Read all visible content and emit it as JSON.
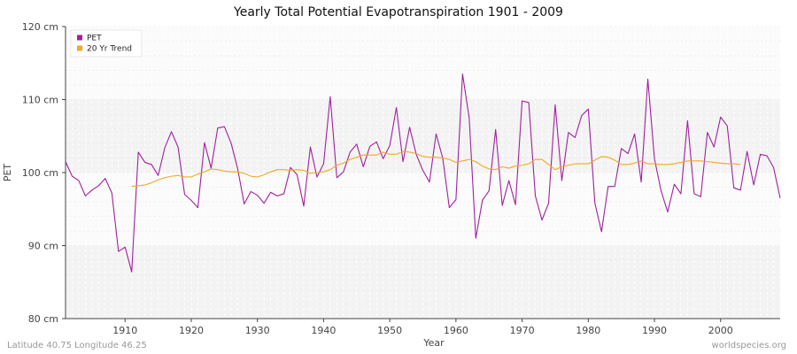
{
  "chart_data": {
    "type": "line",
    "title": "Yearly Total Potential Evapotranspiration 1901 - 2009",
    "xlabel": "Year",
    "ylabel": "PET",
    "xlim": [
      1901,
      2009
    ],
    "ylim": [
      80,
      120
    ],
    "x_ticks": [
      1910,
      1920,
      1930,
      1940,
      1950,
      1960,
      1970,
      1980,
      1990,
      2000
    ],
    "y_ticks": [
      {
        "value": 80,
        "label": "80 cm"
      },
      {
        "value": 90,
        "label": "90 cm"
      },
      {
        "value": 100,
        "label": "100 cm"
      },
      {
        "value": 110,
        "label": "110 cm"
      },
      {
        "value": 120,
        "label": "120 cm"
      }
    ],
    "grid": true,
    "legend_position": "top-left",
    "series": [
      {
        "name": "PET",
        "color": "#a020a0",
        "x_start": 1901,
        "values": [
          101.5,
          99.5,
          98.9,
          96.8,
          97.6,
          98.2,
          99.2,
          97.2,
          89.2,
          89.8,
          86.4,
          102.8,
          101.4,
          101.1,
          99.6,
          103.4,
          105.6,
          103.5,
          97.0,
          96.2,
          95.2,
          104.1,
          100.6,
          106.1,
          106.3,
          104.1,
          100.6,
          95.7,
          97.4,
          96.9,
          95.8,
          97.3,
          96.8,
          97.1,
          100.7,
          99.7,
          95.4,
          103.5,
          99.4,
          101.2,
          110.4,
          99.3,
          100.1,
          102.8,
          103.9,
          100.8,
          103.6,
          104.2,
          101.9,
          103.7,
          108.9,
          101.5,
          106.2,
          102.5,
          100.3,
          98.7,
          105.3,
          102.0,
          95.2,
          96.3,
          113.5,
          107.5,
          91.0,
          96.2,
          97.5,
          105.9,
          95.5,
          98.9,
          95.6,
          109.8,
          109.6,
          96.8,
          93.5,
          95.8,
          109.3,
          98.9,
          105.5,
          104.8,
          107.8,
          108.7,
          95.8,
          91.9,
          98.1,
          98.1,
          103.3,
          102.6,
          105.3,
          98.7,
          112.8,
          101.9,
          97.5,
          94.6,
          98.4,
          97.1,
          107.1,
          97.1,
          96.7,
          105.5,
          103.5,
          107.6,
          106.4,
          97.9,
          97.6,
          102.9,
          98.3,
          102.5,
          102.3,
          100.7,
          96.5
        ]
      },
      {
        "name": "20 Yr Trend",
        "color": "#f5a623",
        "x_start": 1911,
        "values": [
          98.1,
          98.2,
          98.3,
          98.6,
          99.0,
          99.3,
          99.5,
          99.6,
          99.4,
          99.4,
          99.8,
          100.1,
          100.5,
          100.4,
          100.2,
          100.1,
          100.1,
          99.9,
          99.5,
          99.4,
          99.7,
          100.1,
          100.4,
          100.4,
          100.3,
          100.4,
          100.3,
          99.9,
          100.0,
          100.1,
          100.4,
          101.0,
          101.3,
          101.8,
          102.1,
          102.4,
          102.4,
          102.4,
          102.8,
          102.5,
          102.5,
          102.9,
          102.8,
          102.6,
          102.2,
          102.1,
          102.1,
          102.0,
          101.8,
          101.4,
          101.6,
          101.8,
          101.5,
          100.9,
          100.5,
          100.4,
          100.8,
          100.6,
          100.9,
          101.0,
          101.2,
          101.8,
          101.8,
          101.1,
          100.4,
          100.8,
          101.0,
          101.2,
          101.2,
          101.2,
          101.7,
          102.2,
          102.1,
          101.7,
          101.1,
          101.1,
          101.3,
          101.6,
          101.2,
          101.2,
          101.1,
          101.1,
          101.2,
          101.4,
          101.6,
          101.6,
          101.6,
          101.5,
          101.4,
          101.3,
          101.2,
          101.2,
          101.1
        ]
      }
    ]
  },
  "footer": {
    "location": "Latitude 40.75 Longitude 46.25",
    "source": "worldspecies.org"
  }
}
